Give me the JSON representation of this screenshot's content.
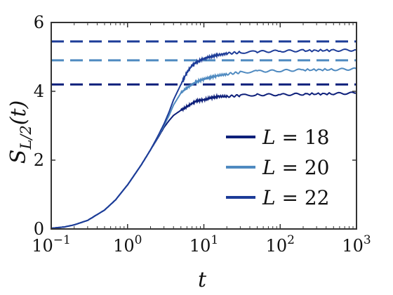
{
  "chart_data": {
    "type": "line",
    "title": "",
    "xlabel": "t",
    "ylabel": "S_{L/2}(t)",
    "xscale": "log",
    "xlim": [
      0.1,
      1000
    ],
    "ylim": [
      0,
      6
    ],
    "x_ticks": [
      {
        "value": 0.1,
        "base": "10",
        "exp": "−1"
      },
      {
        "value": 1,
        "base": "10",
        "exp": "0"
      },
      {
        "value": 10,
        "base": "10",
        "exp": "1"
      },
      {
        "value": 100,
        "base": "10",
        "exp": "2"
      },
      {
        "value": 1000,
        "base": "10",
        "exp": "3"
      }
    ],
    "y_ticks": [
      {
        "value": 0,
        "label": "0"
      },
      {
        "value": 2,
        "label": "2"
      },
      {
        "value": 4,
        "label": "4"
      },
      {
        "value": 6,
        "label": "6"
      }
    ],
    "legend_position": "center-right",
    "series": [
      {
        "name": "L = 18",
        "color": "#0d1f7a",
        "x": [
          0.1,
          0.15,
          0.2,
          0.3,
          0.5,
          0.7,
          1.0,
          1.5,
          2.0,
          2.5,
          3.0,
          3.5,
          4.0,
          5.0,
          6.0,
          7.0,
          8.0,
          10,
          12,
          15,
          20,
          30,
          50,
          100,
          200,
          500,
          1000
        ],
        "y": [
          0.02,
          0.06,
          0.12,
          0.25,
          0.55,
          0.85,
          1.28,
          1.85,
          2.3,
          2.65,
          2.95,
          3.15,
          3.3,
          3.45,
          3.55,
          3.65,
          3.72,
          3.75,
          3.8,
          3.85,
          3.85,
          3.88,
          3.9,
          3.9,
          3.92,
          3.93,
          3.95
        ],
        "saturation": 4.2
      },
      {
        "name": "L = 20",
        "color": "#4f8ac0",
        "x": [
          0.1,
          0.15,
          0.2,
          0.3,
          0.5,
          0.7,
          1.0,
          1.5,
          2.0,
          2.5,
          3.0,
          3.5,
          4.0,
          5.0,
          6.0,
          7.0,
          8.0,
          10,
          12,
          15,
          20,
          30,
          50,
          100,
          200,
          500,
          1000
        ],
        "y": [
          0.02,
          0.06,
          0.12,
          0.25,
          0.55,
          0.85,
          1.28,
          1.85,
          2.3,
          2.68,
          3.0,
          3.3,
          3.6,
          3.95,
          4.1,
          4.2,
          4.28,
          4.35,
          4.4,
          4.45,
          4.5,
          4.55,
          4.58,
          4.6,
          4.62,
          4.63,
          4.65
        ],
        "saturation": 4.9
      },
      {
        "name": "L = 22",
        "color": "#1d3c98",
        "x": [
          0.1,
          0.15,
          0.2,
          0.3,
          0.5,
          0.7,
          1.0,
          1.5,
          2.0,
          2.5,
          3.0,
          3.5,
          4.0,
          5.0,
          6.0,
          7.0,
          8.0,
          10,
          12,
          15,
          20,
          30,
          50,
          100,
          200,
          500,
          1000
        ],
        "y": [
          0.02,
          0.06,
          0.12,
          0.25,
          0.55,
          0.85,
          1.28,
          1.85,
          2.3,
          2.7,
          3.05,
          3.4,
          3.75,
          4.2,
          4.55,
          4.75,
          4.85,
          4.95,
          5.0,
          5.05,
          5.1,
          5.13,
          5.15,
          5.17,
          5.18,
          5.19,
          5.2
        ],
        "saturation": 5.45
      }
    ]
  }
}
